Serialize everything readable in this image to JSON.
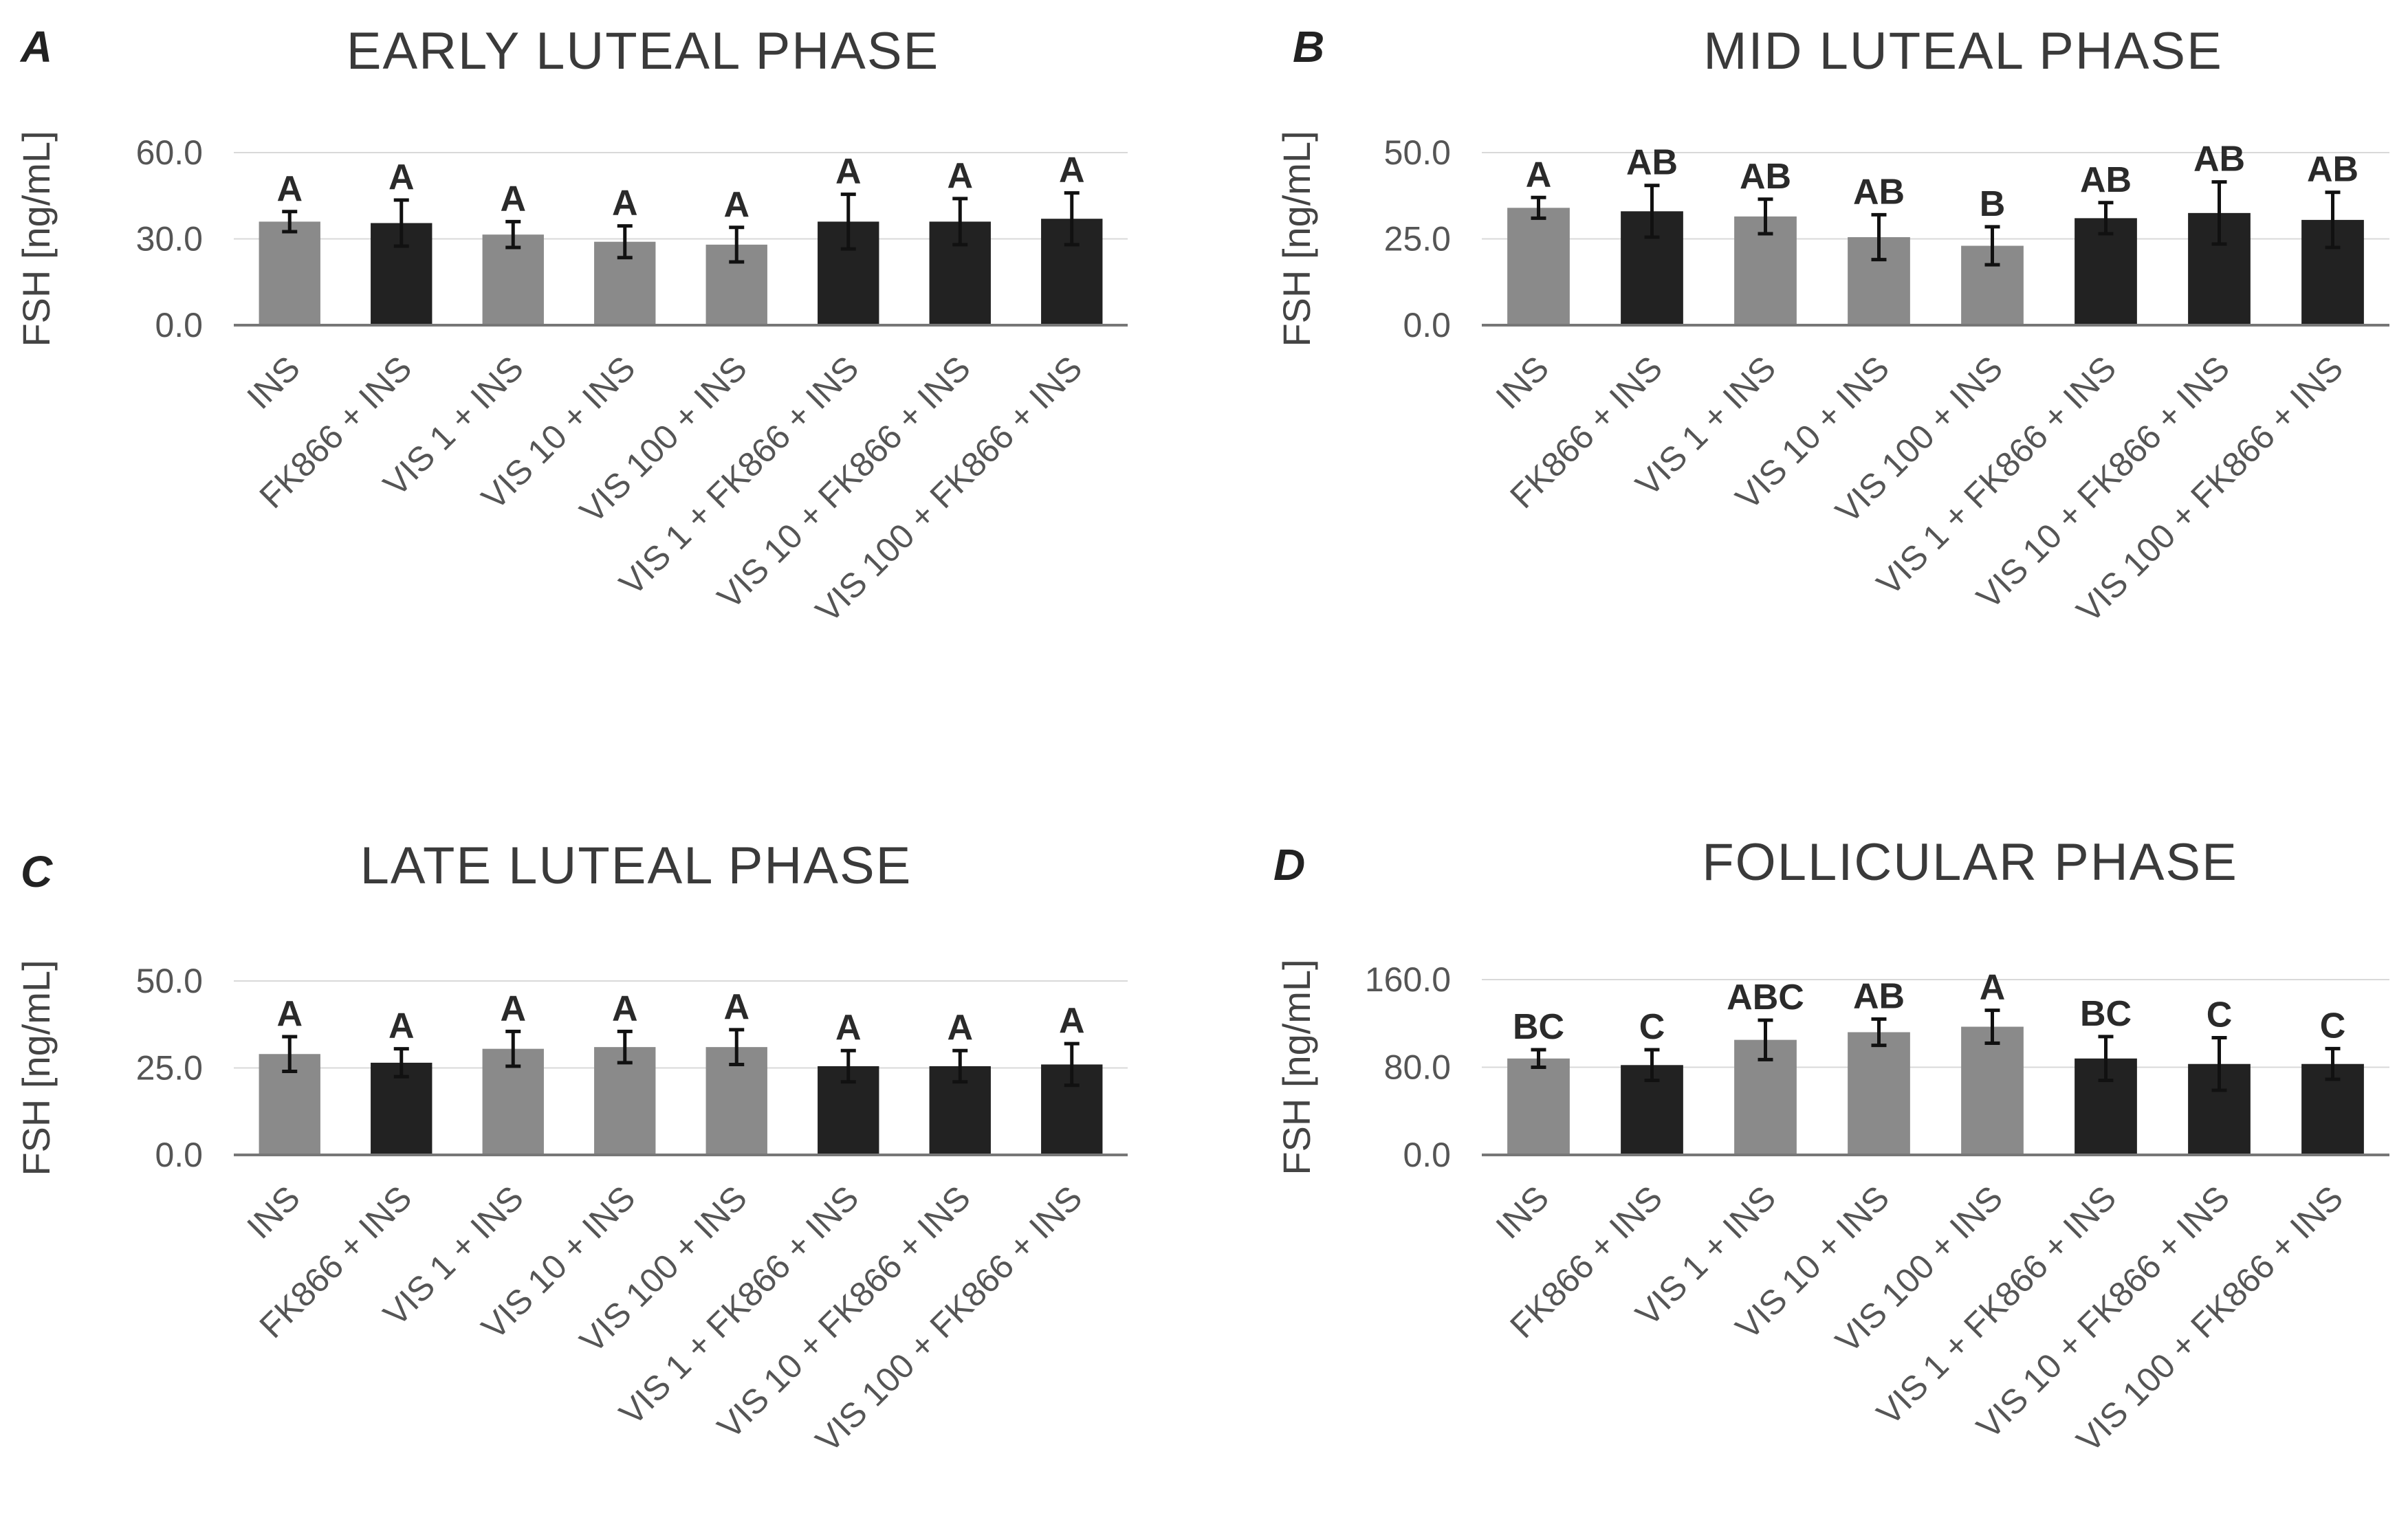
{
  "figure": {
    "colors": {
      "light_bar": "#8a8a8a",
      "dark_bar": "#222222"
    }
  },
  "chart_data": [
    {
      "panel": "A",
      "type": "bar",
      "title": "EARLY LUTEAL PHASE",
      "ylabel": "FSH [ng/mL]",
      "xlabel": "",
      "ylim": [
        0,
        60
      ],
      "yticks": [
        "0.0",
        "30.0",
        "60.0"
      ],
      "ytick_values": [
        0,
        30,
        60
      ],
      "categories": [
        "INS",
        "FK866 + INS",
        "VIS 1 + INS",
        "VIS 10 + INS",
        "VIS 100 + INS",
        "VIS 1 + FK866 + INS",
        "VIS 10 + FK866 + INS",
        "VIS 100 + FK866 + INS"
      ],
      "values": [
        36.0,
        35.5,
        31.5,
        29.0,
        28.0,
        36.0,
        36.0,
        37.0
      ],
      "errors": [
        3.5,
        8.0,
        4.5,
        5.5,
        6.0,
        9.5,
        8.0,
        9.0
      ],
      "bar_shade": [
        "light",
        "dark",
        "light",
        "light",
        "light",
        "dark",
        "dark",
        "dark"
      ],
      "significance": [
        "A",
        "A",
        "A",
        "A",
        "A",
        "A",
        "A",
        "A"
      ]
    },
    {
      "panel": "B",
      "type": "bar",
      "title": "MID LUTEAL PHASE",
      "ylabel": "FSH [ng/mL]",
      "xlabel": "",
      "ylim": [
        0,
        50
      ],
      "yticks": [
        "0.0",
        "25.0",
        "50.0"
      ],
      "ytick_values": [
        0,
        25,
        50
      ],
      "categories": [
        "INS",
        "FK866 + INS",
        "VIS 1 + INS",
        "VIS 10 + INS",
        "VIS 100 + INS",
        "VIS 1 + FK866 + INS",
        "VIS 10 + FK866 + INS",
        "VIS 100 + FK866 + INS"
      ],
      "values": [
        34.0,
        33.0,
        31.5,
        25.5,
        23.0,
        31.0,
        32.5,
        30.5
      ],
      "errors": [
        3.0,
        7.5,
        5.0,
        6.5,
        5.5,
        4.5,
        9.0,
        8.0
      ],
      "bar_shade": [
        "light",
        "dark",
        "light",
        "light",
        "light",
        "dark",
        "dark",
        "dark"
      ],
      "significance": [
        "A",
        "AB",
        "AB",
        "AB",
        "B",
        "AB",
        "AB",
        "AB"
      ]
    },
    {
      "panel": "C",
      "type": "bar",
      "title": "LATE LUTEAL PHASE",
      "ylabel": "FSH [ng/mL]",
      "xlabel": "",
      "ylim": [
        0,
        50
      ],
      "yticks": [
        "0.0",
        "25.0",
        "50.0"
      ],
      "ytick_values": [
        0,
        25,
        50
      ],
      "categories": [
        "INS",
        "FK866 + INS",
        "VIS 1 + INS",
        "VIS 10 + INS",
        "VIS 100 + INS",
        "VIS 1 + FK866 + INS",
        "VIS 10 + FK866 + INS",
        "VIS 100 + FK866 + INS"
      ],
      "values": [
        29.0,
        26.5,
        30.5,
        31.0,
        31.0,
        25.5,
        25.5,
        26.0
      ],
      "errors": [
        5.0,
        4.0,
        5.0,
        4.5,
        5.0,
        4.5,
        4.5,
        6.0
      ],
      "bar_shade": [
        "light",
        "dark",
        "light",
        "light",
        "light",
        "dark",
        "dark",
        "dark"
      ],
      "significance": [
        "A",
        "A",
        "A",
        "A",
        "A",
        "A",
        "A",
        "A"
      ]
    },
    {
      "panel": "D",
      "type": "bar",
      "title": "FOLLICULAR PHASE",
      "ylabel": "FSH [ng/mL]",
      "xlabel": "",
      "ylim": [
        0,
        160
      ],
      "yticks": [
        "0.0",
        "80.0",
        "160.0"
      ],
      "ytick_values": [
        0,
        80,
        160
      ],
      "categories": [
        "INS",
        "FK866 + INS",
        "VIS 1 + INS",
        "VIS 10 + INS",
        "VIS 100 + INS",
        "VIS 1 + FK866 + INS",
        "VIS 10 + FK866 + INS",
        "VIS 100 + FK866 + INS"
      ],
      "values": [
        88.0,
        82.0,
        105.0,
        112.0,
        117.0,
        88.0,
        83.0,
        83.0
      ],
      "errors": [
        8.0,
        14.0,
        18.0,
        12.0,
        15.0,
        20.0,
        24.0,
        14.0
      ],
      "bar_shade": [
        "light",
        "dark",
        "light",
        "light",
        "light",
        "dark",
        "dark",
        "dark"
      ],
      "significance": [
        "BC",
        "C",
        "ABC",
        "AB",
        "A",
        "BC",
        "C",
        "C"
      ]
    }
  ]
}
